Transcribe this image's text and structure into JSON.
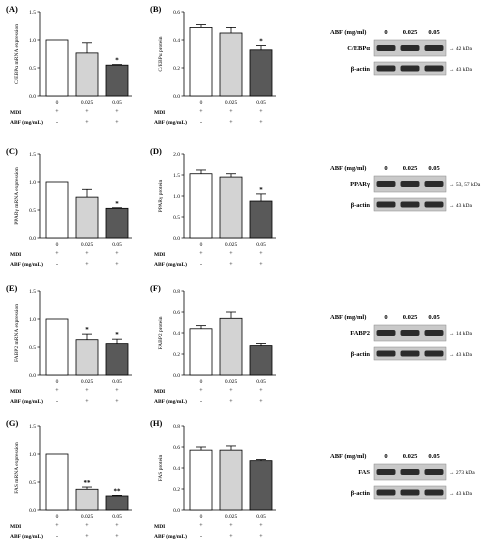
{
  "conditions": {
    "abf": [
      "0",
      "0.025",
      "0.05"
    ],
    "row_mdi": "MDI",
    "row_abf": "ABF (mg/mL)",
    "mdi_signs": [
      "+",
      "+",
      "+"
    ],
    "abf_signs": [
      "-",
      "+",
      "+"
    ]
  },
  "blot_header": "ABF (mg/ml)",
  "loading_label": "β-actin",
  "actin_kda": "→ 43 kDa",
  "panels": [
    {
      "letter": "(A)",
      "ylabel": "C/EBPα mRNA expression",
      "ylim": [
        0,
        1.5
      ],
      "ticks": [
        0,
        0.5,
        1.0,
        1.5
      ],
      "ticktext": [
        "0.0",
        "0.5",
        "1.0",
        "1.5"
      ],
      "values": [
        1.0,
        0.77,
        0.55
      ],
      "err": [
        0,
        0.18,
        0.01
      ],
      "sig": [
        "",
        "",
        "*"
      ]
    },
    {
      "letter": "(B)",
      "ylabel": "C/EBPα protein",
      "ylim": [
        0,
        0.6
      ],
      "ticks": [
        0,
        0.2,
        0.4,
        0.6
      ],
      "ticktext": [
        "0.0",
        "0.2",
        "0.4",
        "0.6"
      ],
      "values": [
        0.49,
        0.45,
        0.33
      ],
      "err": [
        0.02,
        0.04,
        0.03
      ],
      "sig": [
        "",
        "",
        "*"
      ]
    },
    {
      "letter": "(C)",
      "ylabel": "PPARγ mRNA expression",
      "ylim": [
        0,
        1.5
      ],
      "ticks": [
        0,
        0.5,
        1.0,
        1.5
      ],
      "ticktext": [
        "0.0",
        "0.5",
        "1.0",
        "1.5"
      ],
      "values": [
        1.0,
        0.73,
        0.53
      ],
      "err": [
        0,
        0.14,
        0.01
      ],
      "sig": [
        "",
        "",
        "*"
      ]
    },
    {
      "letter": "(D)",
      "ylabel": "PPARγ protein",
      "ylim": [
        0,
        2.0
      ],
      "ticks": [
        0,
        0.5,
        1.0,
        1.5,
        2.0
      ],
      "ticktext": [
        "0.0",
        "0.5",
        "1.0",
        "1.5",
        "2.0"
      ],
      "values": [
        1.53,
        1.45,
        0.88
      ],
      "err": [
        0.09,
        0.08,
        0.17
      ],
      "sig": [
        "",
        "",
        "*"
      ]
    },
    {
      "letter": "(E)",
      "ylabel": "FABP2 mRNA expression",
      "ylim": [
        0,
        1.5
      ],
      "ticks": [
        0,
        0.5,
        1.0,
        1.5
      ],
      "ticktext": [
        "0.0",
        "0.5",
        "1.0",
        "1.5"
      ],
      "values": [
        1.0,
        0.63,
        0.56
      ],
      "err": [
        0,
        0.1,
        0.08
      ],
      "sig": [
        "",
        "*",
        "*"
      ]
    },
    {
      "letter": "(F)",
      "ylabel": "FABP2 protein",
      "ylim": [
        0,
        0.8
      ],
      "ticks": [
        0,
        0.2,
        0.4,
        0.6,
        0.8
      ],
      "ticktext": [
        "0.0",
        "0.2",
        "0.4",
        "0.6",
        "0.8"
      ],
      "values": [
        0.44,
        0.54,
        0.28
      ],
      "err": [
        0.03,
        0.06,
        0.02
      ],
      "sig": [
        "",
        "",
        ""
      ]
    },
    {
      "letter": "(G)",
      "ylabel": "FAS mRNA expression",
      "ylim": [
        0,
        1.5
      ],
      "ticks": [
        0,
        0.5,
        1.0,
        1.5
      ],
      "ticktext": [
        "0.0",
        "0.5",
        "1.0",
        "1.5"
      ],
      "values": [
        1.0,
        0.37,
        0.25
      ],
      "err": [
        0,
        0.04,
        0.01
      ],
      "sig": [
        "",
        "**",
        "**"
      ]
    },
    {
      "letter": "(H)",
      "ylabel": "FAS protein",
      "ylim": [
        0,
        0.8
      ],
      "ticks": [
        0,
        0.2,
        0.4,
        0.6,
        0.8
      ],
      "ticktext": [
        "0.0",
        "0.2",
        "0.4",
        "0.6",
        "0.8"
      ],
      "values": [
        0.57,
        0.57,
        0.47
      ],
      "err": [
        0.03,
        0.04,
        0.01
      ],
      "sig": [
        "",
        "",
        ""
      ]
    }
  ],
  "blots": [
    {
      "target": "C/EBPα",
      "kda": "→ 42 kDa"
    },
    {
      "target": "PPARγ",
      "kda": "→ 53, 57 kDa"
    },
    {
      "target": "FABP2",
      "kda": "→ 14 kDa"
    },
    {
      "target": "FAS",
      "kda": "→ 273 kDa"
    }
  ],
  "colors": {
    "bar_0": "#ffffff",
    "bar_1": "#d3d3d3",
    "bar_2": "#595959",
    "band": "#2b2b2b",
    "membrane": "#c9c9c9"
  },
  "chart_data": [
    {
      "type": "bar",
      "title": "(A)",
      "categories": [
        "0",
        "0.025",
        "0.05"
      ],
      "values": [
        1.0,
        0.77,
        0.55
      ],
      "error": [
        0,
        0.18,
        0.01
      ],
      "ylabel": "C/EBPα mRNA expression",
      "ylim": [
        0,
        1.5
      ]
    },
    {
      "type": "bar",
      "title": "(B)",
      "categories": [
        "0",
        "0.025",
        "0.05"
      ],
      "values": [
        0.49,
        0.45,
        0.33
      ],
      "error": [
        0.02,
        0.04,
        0.03
      ],
      "ylabel": "C/EBPα protein",
      "ylim": [
        0,
        0.6
      ]
    },
    {
      "type": "bar",
      "title": "(C)",
      "categories": [
        "0",
        "0.025",
        "0.05"
      ],
      "values": [
        1.0,
        0.73,
        0.53
      ],
      "error": [
        0,
        0.14,
        0.01
      ],
      "ylabel": "PPARγ mRNA expression",
      "ylim": [
        0,
        1.5
      ]
    },
    {
      "type": "bar",
      "title": "(D)",
      "categories": [
        "0",
        "0.025",
        "0.05"
      ],
      "values": [
        1.53,
        1.45,
        0.88
      ],
      "error": [
        0.09,
        0.08,
        0.17
      ],
      "ylabel": "PPARγ protein",
      "ylim": [
        0,
        2.0
      ]
    },
    {
      "type": "bar",
      "title": "(E)",
      "categories": [
        "0",
        "0.025",
        "0.05"
      ],
      "values": [
        1.0,
        0.63,
        0.56
      ],
      "error": [
        0,
        0.1,
        0.08
      ],
      "ylabel": "FABP2 mRNA expression",
      "ylim": [
        0,
        1.5
      ]
    },
    {
      "type": "bar",
      "title": "(F)",
      "categories": [
        "0",
        "0.025",
        "0.05"
      ],
      "values": [
        0.44,
        0.54,
        0.28
      ],
      "error": [
        0.03,
        0.06,
        0.02
      ],
      "ylabel": "FABP2 protein",
      "ylim": [
        0,
        0.8
      ]
    },
    {
      "type": "bar",
      "title": "(G)",
      "categories": [
        "0",
        "0.025",
        "0.05"
      ],
      "values": [
        1.0,
        0.37,
        0.25
      ],
      "error": [
        0,
        0.04,
        0.01
      ],
      "ylabel": "FAS mRNA expression",
      "ylim": [
        0,
        1.5
      ]
    },
    {
      "type": "bar",
      "title": "(H)",
      "categories": [
        "0",
        "0.025",
        "0.05"
      ],
      "values": [
        0.57,
        0.57,
        0.47
      ],
      "error": [
        0.03,
        0.04,
        0.01
      ],
      "ylabel": "FAS protein",
      "ylim": [
        0,
        0.8
      ]
    }
  ]
}
